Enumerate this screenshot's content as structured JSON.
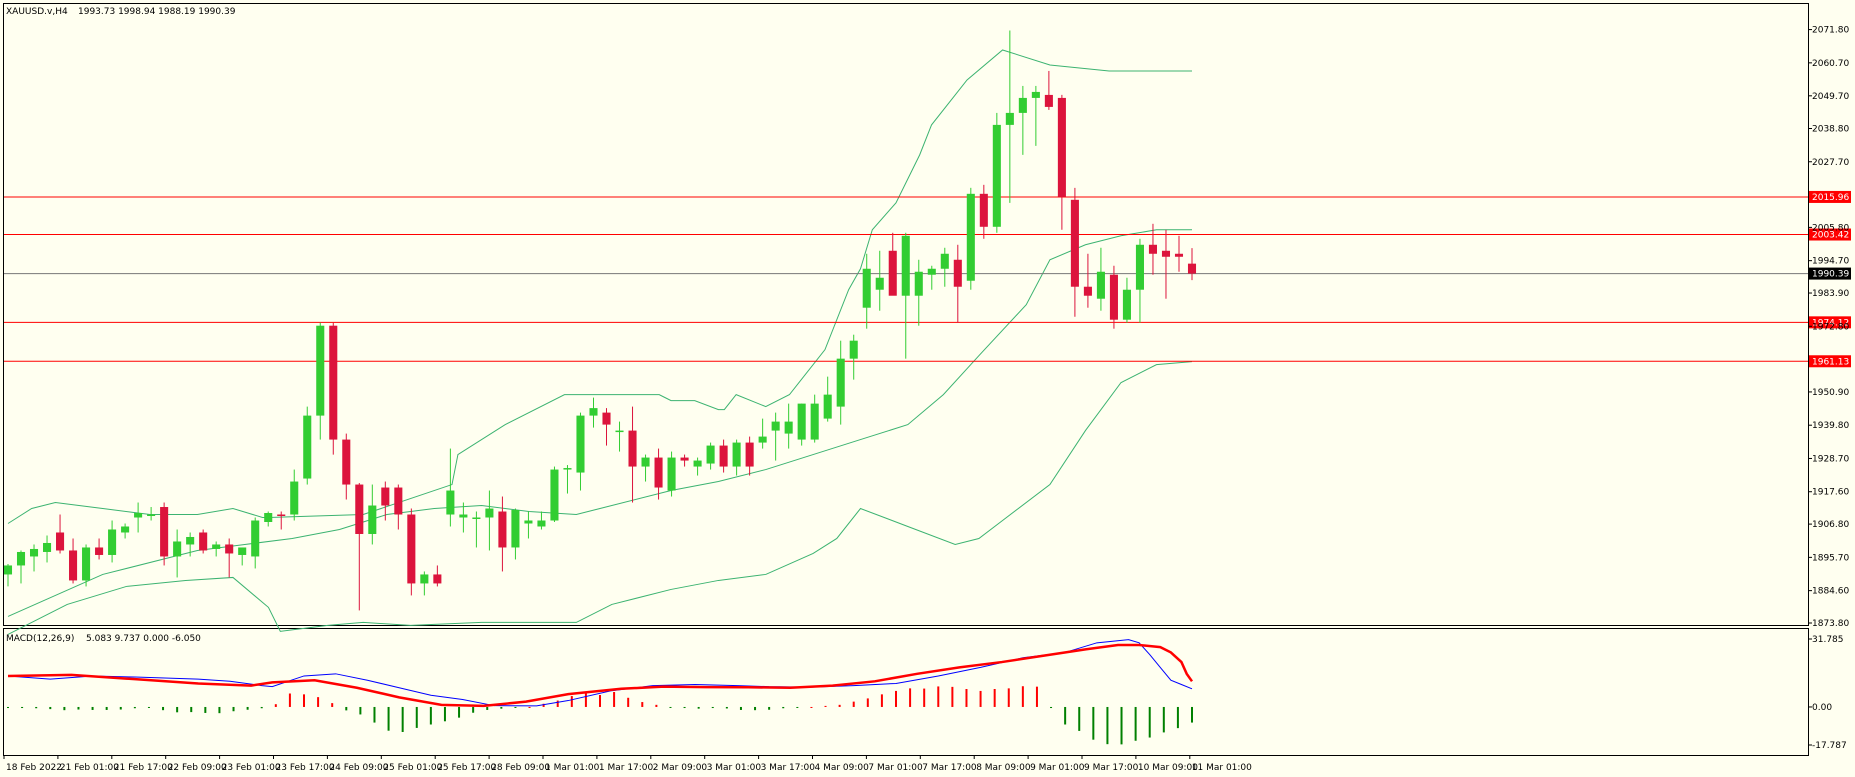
{
  "header": {
    "symbol": "XAUUSD.v,H4",
    "ohlc": "1993.73 1998.94 1988.19 1990.39"
  },
  "macd_header": {
    "label": "MACD(12,26,9)",
    "values": "5.083 9.737 0.000 -6.050"
  },
  "colors": {
    "background": "#fffff0",
    "bull": "#32cd32",
    "bear": "#dc143c",
    "bollinger": "#3cb371",
    "level_line": "#ff0000",
    "level_label_bg": "#ff0000",
    "current_label_bg": "#000000",
    "macd_line": "#0000ff",
    "signal_line": "#ff0000"
  },
  "chart_data": [
    {
      "type": "candlestick",
      "title": "XAUUSD.v,H4",
      "y_ticks": [
        "2071.80",
        "2060.70",
        "2049.70",
        "2038.80",
        "2027.70",
        "2005.80",
        "1994.70",
        "1983.90",
        "1972.80",
        "1950.90",
        "1939.80",
        "1928.70",
        "1917.60",
        "1906.80",
        "1895.70",
        "1884.60",
        "1873.80"
      ],
      "ylim": [
        1873.8,
        2077.0
      ],
      "x_labels": [
        "18 Feb 2022",
        "21 Feb 01:00",
        "21 Feb 17:00",
        "22 Feb 09:00",
        "23 Feb 01:00",
        "23 Feb 17:00",
        "24 Feb 09:00",
        "25 Feb 01:00",
        "25 Feb 17:00",
        "28 Feb 09:00",
        "1 Mar 01:00",
        "1 Mar 17:00",
        "2 Mar 09:00",
        "3 Mar 01:00",
        "3 Mar 17:00",
        "4 Mar 09:00",
        "7 Mar 01:00",
        "7 Mar 17:00",
        "8 Mar 09:00",
        "9 Mar 01:00",
        "9 Mar 17:00",
        "10 Mar 09:00",
        "11 Mar 01:00"
      ],
      "horizontal_levels": [
        2015.96,
        2003.42,
        1974.12,
        1961.13
      ],
      "horizontal_level_labels": [
        "2015.96",
        "2003.42",
        "1974.12",
        "1961.13"
      ],
      "current_price": 1990.39,
      "current_price_label": "1990.39",
      "candles": [
        {
          "o": 1890.0,
          "h": 1893.5,
          "l": 1886.0,
          "c": 1893.0
        },
        {
          "o": 1893.0,
          "h": 1898.0,
          "l": 1887.0,
          "c": 1897.5
        },
        {
          "o": 1896.0,
          "h": 1900.0,
          "l": 1891.0,
          "c": 1898.5
        },
        {
          "o": 1897.5,
          "h": 1903.0,
          "l": 1894.0,
          "c": 1900.5
        },
        {
          "o": 1904.0,
          "h": 1910.0,
          "l": 1897.0,
          "c": 1898.0
        },
        {
          "o": 1898.0,
          "h": 1902.0,
          "l": 1887.0,
          "c": 1888.0
        },
        {
          "o": 1888.0,
          "h": 1900.0,
          "l": 1886.0,
          "c": 1899.0
        },
        {
          "o": 1899.0,
          "h": 1902.0,
          "l": 1895.0,
          "c": 1896.5
        },
        {
          "o": 1896.5,
          "h": 1908.0,
          "l": 1894.0,
          "c": 1905.0
        },
        {
          "o": 1904.0,
          "h": 1907.0,
          "l": 1902.0,
          "c": 1906.0
        },
        {
          "o": 1909.0,
          "h": 1914.0,
          "l": 1904.0,
          "c": 1910.5
        },
        {
          "o": 1910.0,
          "h": 1912.5,
          "l": 1908.0,
          "c": 1910.0
        },
        {
          "o": 1912.5,
          "h": 1914.0,
          "l": 1893.0,
          "c": 1896.0
        },
        {
          "o": 1896.0,
          "h": 1905.0,
          "l": 1889.0,
          "c": 1901.0
        },
        {
          "o": 1900.0,
          "h": 1904.0,
          "l": 1896.0,
          "c": 1902.5
        },
        {
          "o": 1904.0,
          "h": 1905.0,
          "l": 1897.0,
          "c": 1898.0
        },
        {
          "o": 1898.5,
          "h": 1901.0,
          "l": 1896.0,
          "c": 1900.0
        },
        {
          "o": 1900.0,
          "h": 1902.0,
          "l": 1889.0,
          "c": 1897.0
        },
        {
          "o": 1896.5,
          "h": 1899.0,
          "l": 1893.0,
          "c": 1899.0
        },
        {
          "o": 1896.0,
          "h": 1909.0,
          "l": 1892.0,
          "c": 1908.0
        },
        {
          "o": 1907.5,
          "h": 1911.0,
          "l": 1906.0,
          "c": 1910.5
        },
        {
          "o": 1910.0,
          "h": 1911.0,
          "l": 1905.0,
          "c": 1909.5
        },
        {
          "o": 1910.0,
          "h": 1925.0,
          "l": 1908.0,
          "c": 1921.0
        },
        {
          "o": 1922.0,
          "h": 1946.0,
          "l": 1920.0,
          "c": 1943.0
        },
        {
          "o": 1943.0,
          "h": 1974.0,
          "l": 1935.0,
          "c": 1973.0
        },
        {
          "o": 1973.0,
          "h": 1974.0,
          "l": 1930.0,
          "c": 1935.0
        },
        {
          "o": 1935.0,
          "h": 1937.0,
          "l": 1915.0,
          "c": 1920.0
        },
        {
          "o": 1920.0,
          "h": 1920.5,
          "l": 1878.0,
          "c": 1903.5
        },
        {
          "o": 1903.5,
          "h": 1920.0,
          "l": 1900.0,
          "c": 1913.0
        },
        {
          "o": 1919.0,
          "h": 1921.0,
          "l": 1908.0,
          "c": 1913.0
        },
        {
          "o": 1919.0,
          "h": 1920.0,
          "l": 1905.0,
          "c": 1910.0
        },
        {
          "o": 1910.0,
          "h": 1912.0,
          "l": 1883.0,
          "c": 1887.0
        },
        {
          "o": 1887.0,
          "h": 1891.0,
          "l": 1883.0,
          "c": 1890.0
        },
        {
          "o": 1890.0,
          "h": 1893.0,
          "l": 1886.0,
          "c": 1887.0
        },
        {
          "o": 1910.0,
          "h": 1932.0,
          "l": 1906.0,
          "c": 1918.0
        },
        {
          "o": 1909.0,
          "h": 1914.0,
          "l": 1904.0,
          "c": 1910.0
        },
        {
          "o": 1909.0,
          "h": 1911.0,
          "l": 1899.0,
          "c": 1909.0
        },
        {
          "o": 1909.0,
          "h": 1918.0,
          "l": 1898.0,
          "c": 1912.0
        },
        {
          "o": 1911.0,
          "h": 1916.0,
          "l": 1891.0,
          "c": 1899.0
        },
        {
          "o": 1899.0,
          "h": 1912.0,
          "l": 1895.0,
          "c": 1911.5
        },
        {
          "o": 1907.0,
          "h": 1911.0,
          "l": 1902.0,
          "c": 1908.0
        },
        {
          "o": 1906.0,
          "h": 1911.0,
          "l": 1905.0,
          "c": 1908.0
        },
        {
          "o": 1908.0,
          "h": 1926.0,
          "l": 1907.5,
          "c": 1925.0
        },
        {
          "o": 1925.0,
          "h": 1926.5,
          "l": 1917.0,
          "c": 1925.5
        },
        {
          "o": 1924.0,
          "h": 1944.0,
          "l": 1918.0,
          "c": 1943.0
        },
        {
          "o": 1943.0,
          "h": 1949.0,
          "l": 1939.0,
          "c": 1945.5
        },
        {
          "o": 1944.0,
          "h": 1945.5,
          "l": 1933.0,
          "c": 1940.0
        },
        {
          "o": 1938.0,
          "h": 1941.0,
          "l": 1931.0,
          "c": 1938.0
        },
        {
          "o": 1938.0,
          "h": 1946.0,
          "l": 1914.0,
          "c": 1926.0
        },
        {
          "o": 1926.0,
          "h": 1930.0,
          "l": 1921.0,
          "c": 1929.0
        },
        {
          "o": 1929.0,
          "h": 1932.0,
          "l": 1915.0,
          "c": 1919.0
        },
        {
          "o": 1918.0,
          "h": 1931.0,
          "l": 1916.0,
          "c": 1929.0
        },
        {
          "o": 1929.0,
          "h": 1930.0,
          "l": 1926.0,
          "c": 1928.0
        },
        {
          "o": 1926.0,
          "h": 1929.0,
          "l": 1923.0,
          "c": 1928.0
        },
        {
          "o": 1927.0,
          "h": 1934.0,
          "l": 1925.0,
          "c": 1933.0
        },
        {
          "o": 1933.0,
          "h": 1935.0,
          "l": 1924.0,
          "c": 1926.0
        },
        {
          "o": 1926.0,
          "h": 1935.0,
          "l": 1923.0,
          "c": 1934.0
        },
        {
          "o": 1934.0,
          "h": 1936.0,
          "l": 1923.0,
          "c": 1926.0
        },
        {
          "o": 1934.0,
          "h": 1942.0,
          "l": 1932.0,
          "c": 1936.0
        },
        {
          "o": 1938.0,
          "h": 1944.0,
          "l": 1928.0,
          "c": 1941.0
        },
        {
          "o": 1937.0,
          "h": 1947.0,
          "l": 1932.0,
          "c": 1941.0
        },
        {
          "o": 1935.0,
          "h": 1947.0,
          "l": 1933.0,
          "c": 1947.0
        },
        {
          "o": 1935.0,
          "h": 1950.0,
          "l": 1934.0,
          "c": 1947.0
        },
        {
          "o": 1942.0,
          "h": 1956.0,
          "l": 1941.0,
          "c": 1950.0
        },
        {
          "o": 1946.0,
          "h": 1968.0,
          "l": 1940.0,
          "c": 1962.0
        },
        {
          "o": 1962.0,
          "h": 1970.0,
          "l": 1955.0,
          "c": 1968.0
        },
        {
          "o": 1979.0,
          "h": 1997.0,
          "l": 1972.0,
          "c": 1992.0
        },
        {
          "o": 1985.0,
          "h": 1998.0,
          "l": 1978.0,
          "c": 1989.0
        },
        {
          "o": 1998.0,
          "h": 2004.0,
          "l": 1984.0,
          "c": 1983.0
        },
        {
          "o": 1983.0,
          "h": 2004.0,
          "l": 1962.0,
          "c": 2003.0
        },
        {
          "o": 1983.0,
          "h": 1995.0,
          "l": 1973.0,
          "c": 1991.0
        },
        {
          "o": 1990.0,
          "h": 1993.0,
          "l": 1985.0,
          "c": 1992.0
        },
        {
          "o": 1992.0,
          "h": 1999.0,
          "l": 1986.0,
          "c": 1997.0
        },
        {
          "o": 1995.0,
          "h": 2000.0,
          "l": 1974.0,
          "c": 1986.0
        },
        {
          "o": 1988.0,
          "h": 2019.0,
          "l": 1985.0,
          "c": 2017.0
        },
        {
          "o": 2017.0,
          "h": 2020.0,
          "l": 2002.0,
          "c": 2006.0
        },
        {
          "o": 2006.0,
          "h": 2044.0,
          "l": 2004.0,
          "c": 2040.0
        },
        {
          "o": 2040.0,
          "h": 2071.5,
          "l": 2014.0,
          "c": 2044.0
        },
        {
          "o": 2044.0,
          "h": 2053.0,
          "l": 2030.0,
          "c": 2049.0
        },
        {
          "o": 2049.0,
          "h": 2053.0,
          "l": 2033.0,
          "c": 2051.0
        },
        {
          "o": 2050.0,
          "h": 2058.0,
          "l": 2045.0,
          "c": 2046.0
        },
        {
          "o": 2049.0,
          "h": 2050.0,
          "l": 2005.0,
          "c": 2016.0
        },
        {
          "o": 2015.0,
          "h": 2019.0,
          "l": 1976.0,
          "c": 1986.0
        },
        {
          "o": 1986.0,
          "h": 1997.0,
          "l": 1979.0,
          "c": 1983.0
        },
        {
          "o": 1982.0,
          "h": 1999.0,
          "l": 1978.0,
          "c": 1991.0
        },
        {
          "o": 1990.0,
          "h": 1993.0,
          "l": 1972.0,
          "c": 1975.0
        },
        {
          "o": 1975.0,
          "h": 1989.0,
          "l": 1974.0,
          "c": 1985.0
        },
        {
          "o": 1985.0,
          "h": 2002.0,
          "l": 1974.0,
          "c": 2000.0
        },
        {
          "o": 2000.0,
          "h": 2007.0,
          "l": 1990.0,
          "c": 1997.0
        },
        {
          "o": 1998.0,
          "h": 2005.0,
          "l": 1982.0,
          "c": 1996.0
        },
        {
          "o": 1997.0,
          "h": 2003.0,
          "l": 1991.0,
          "c": 1996.0
        },
        {
          "o": 1993.7,
          "h": 1998.9,
          "l": 1988.2,
          "c": 1990.4
        }
      ],
      "bollinger_upper": [
        1907,
        1912,
        1914,
        1912,
        1910,
        1910,
        1912,
        1909,
        1909,
        1910,
        1920,
        1930,
        1940,
        1950,
        1950,
        1950,
        1949,
        1948,
        1948,
        1945,
        1945,
        1950,
        1946,
        1950,
        1965,
        1985,
        1992,
        2005,
        2014,
        2030,
        2040,
        2055,
        2065,
        2060,
        2058,
        2058,
        2058
      ],
      "bollinger_middle": [
        1876,
        1890,
        1898,
        1900,
        1902,
        1905,
        1910,
        1912,
        1913,
        1911,
        1910,
        1912,
        1918,
        1921,
        1925,
        1930,
        1935,
        1940,
        1950,
        1963,
        1980,
        1995,
        2000,
        2003,
        2005,
        2005
      ],
      "bollinger_lower": [
        1870,
        1880,
        1886,
        1888,
        1889,
        1879,
        1871,
        1873,
        1874,
        1873,
        1874,
        1874,
        1880,
        1885,
        1888,
        1890,
        1897,
        1902,
        1912,
        1906,
        1900,
        1902,
        1908,
        1920,
        1938,
        1954,
        1960,
        1961
      ],
      "bollinger_x_fraction_upper": [
        0.0,
        0.02,
        0.04,
        0.08,
        0.12,
        0.16,
        0.19,
        0.215,
        0.22,
        0.3,
        0.375,
        0.38,
        0.42,
        0.47,
        0.52,
        0.55,
        0.555,
        0.56,
        0.58,
        0.6,
        0.605,
        0.615,
        0.64,
        0.66,
        0.69,
        0.71,
        0.72,
        0.73,
        0.75,
        0.77,
        0.78,
        0.81,
        0.84,
        0.88,
        0.93,
        0.97,
        1.0
      ],
      "bollinger_x_fraction_middle": [
        0.0,
        0.08,
        0.16,
        0.2,
        0.24,
        0.28,
        0.32,
        0.36,
        0.4,
        0.44,
        0.48,
        0.5,
        0.56,
        0.6,
        0.64,
        0.68,
        0.72,
        0.76,
        0.79,
        0.82,
        0.86,
        0.88,
        0.91,
        0.94,
        0.97,
        1.0
      ],
      "bollinger_x_fraction_lower": [
        0.0,
        0.05,
        0.1,
        0.15,
        0.19,
        0.22,
        0.23,
        0.27,
        0.3,
        0.34,
        0.4,
        0.48,
        0.51,
        0.56,
        0.6,
        0.64,
        0.68,
        0.7,
        0.72,
        0.76,
        0.8,
        0.82,
        0.84,
        0.88,
        0.91,
        0.94,
        0.97,
        1.0
      ]
    },
    {
      "type": "macd",
      "title": "MACD(12,26,9)",
      "y_ticks": [
        "31.785",
        "0.00",
        "-17.787"
      ],
      "ylim": [
        -17.787,
        31.785
      ],
      "histogram": [
        -0.5,
        -0.5,
        -0.6,
        -1.0,
        -1.5,
        -1.2,
        -1.4,
        -1.4,
        -1.2,
        -0.6,
        -0.4,
        -1.5,
        -2.5,
        -2.4,
        -2.8,
        -2.9,
        -2.0,
        -1.3,
        -0.6,
        1.3,
        6.3,
        5.9,
        4.6,
        1.8,
        -1.6,
        -3.5,
        -7.3,
        -11.1,
        -11.7,
        -9.8,
        -8.2,
        -6.7,
        -5.0,
        -2.7,
        -1.4,
        -0.8,
        -0.2,
        0.2,
        1.5,
        3.0,
        5.1,
        6.6,
        5.6,
        7.0,
        4.3,
        2.3,
        1.0,
        -0.2,
        -0.5,
        -0.8,
        -0.5,
        -0.7,
        -1.4,
        -1.5,
        -1.3,
        -0.6,
        -0.3,
        0.3,
        0.5,
        1.0,
        2.5,
        4.0,
        5.9,
        7.5,
        8.7,
        8.6,
        9.6,
        9.4,
        8.4,
        7.5,
        8.4,
        8.7,
        9.7,
        9.5,
        -0.5,
        -8.2,
        -11.2,
        -15.3,
        -17.4,
        -17.5,
        -15.8,
        -14.3,
        -11.9,
        -9.9,
        -7.3
      ],
      "macd_line": [
        14.5,
        13.0,
        14.5,
        14.0,
        13.0,
        12.0,
        10.0,
        9.5,
        14.5,
        15.5,
        12.5,
        9.0,
        5.5,
        3.5,
        0.6,
        0.5,
        3.0,
        7.5,
        10.0,
        10.5,
        10.0,
        9.5,
        9.3,
        10.0,
        11.0,
        14.5,
        18.5,
        23.0,
        25.5,
        30.0,
        31.5,
        30.0,
        24.5,
        18.5,
        12.5,
        10.5,
        8.5
      ],
      "signal_line": [
        14.5,
        15.0,
        13.0,
        11.0,
        10.0,
        11.5,
        12.5,
        9.0,
        4.5,
        1.0,
        0.5,
        2.5,
        6.0,
        8.5,
        9.5,
        9.3,
        9.2,
        9.0,
        10.0,
        12.0,
        15.5,
        18.5,
        21.0,
        24.0,
        27.0,
        29.0,
        29.0,
        28.0,
        25.5,
        21.0,
        15.5,
        12.0
      ],
      "macd_x_fraction": [
        0.0,
        0.04,
        0.08,
        0.12,
        0.18,
        0.21,
        0.24,
        0.25,
        0.28,
        0.31,
        0.34,
        0.37,
        0.4,
        0.43,
        0.46,
        0.5,
        0.53,
        0.57,
        0.61,
        0.65,
        0.69,
        0.72,
        0.76,
        0.8,
        0.84,
        0.88,
        0.92,
        0.96,
        1.0,
        1.03,
        1.06,
        1.07,
        1.08,
        1.09,
        1.1,
        1.11,
        1.12
      ],
      "signal_x_fraction": [
        0.0,
        0.06,
        0.12,
        0.18,
        0.23,
        0.25,
        0.29,
        0.33,
        0.37,
        0.41,
        0.45,
        0.49,
        0.53,
        0.58,
        0.62,
        0.66,
        0.7,
        0.74,
        0.78,
        0.82,
        0.86,
        0.9,
        0.94,
        0.98,
        1.02,
        1.05,
        1.07,
        1.09,
        1.1,
        1.11,
        1.115,
        1.12
      ]
    }
  ]
}
